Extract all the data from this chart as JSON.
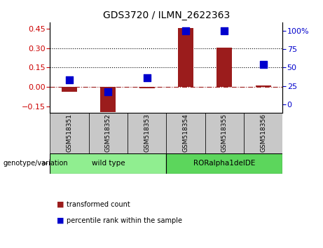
{
  "title": "GDS3720 / ILMN_2622363",
  "samples": [
    "GSM518351",
    "GSM518352",
    "GSM518353",
    "GSM518354",
    "GSM518355",
    "GSM518356"
  ],
  "transformed_count": [
    -0.04,
    -0.195,
    -0.012,
    0.455,
    0.305,
    0.012
  ],
  "percentile_rank": [
    33,
    17,
    36,
    100,
    100,
    54
  ],
  "left_ylim": [
    -0.2,
    0.5
  ],
  "left_yticks": [
    -0.15,
    0.0,
    0.15,
    0.3,
    0.45
  ],
  "right_ylim": [
    -11.11,
    111.11
  ],
  "right_yticks": [
    0,
    25,
    50,
    75,
    100
  ],
  "right_tick_labels": [
    "0",
    "25",
    "50",
    "75",
    "100%"
  ],
  "hlines_dotted": [
    0.15,
    0.3
  ],
  "hline_dashdot": 0.0,
  "bar_color": "#9B1C1C",
  "dot_color": "#0000CD",
  "bar_width": 0.4,
  "dot_size": 45,
  "group_configs": [
    {
      "start": 0,
      "end": 2,
      "label": "wild type",
      "color": "#90EE90"
    },
    {
      "start": 3,
      "end": 5,
      "label": "RORalpha1delDE",
      "color": "#5CD65C"
    }
  ],
  "group_label": "genotype/variation",
  "legend_items": [
    {
      "label": "transformed count",
      "color": "#9B1C1C"
    },
    {
      "label": "percentile rank within the sample",
      "color": "#0000CD"
    }
  ],
  "background_color": "#ffffff",
  "tick_label_color_left": "#CC0000",
  "tick_label_color_right": "#0000CC",
  "xlab_box_color": "#C8C8C8"
}
